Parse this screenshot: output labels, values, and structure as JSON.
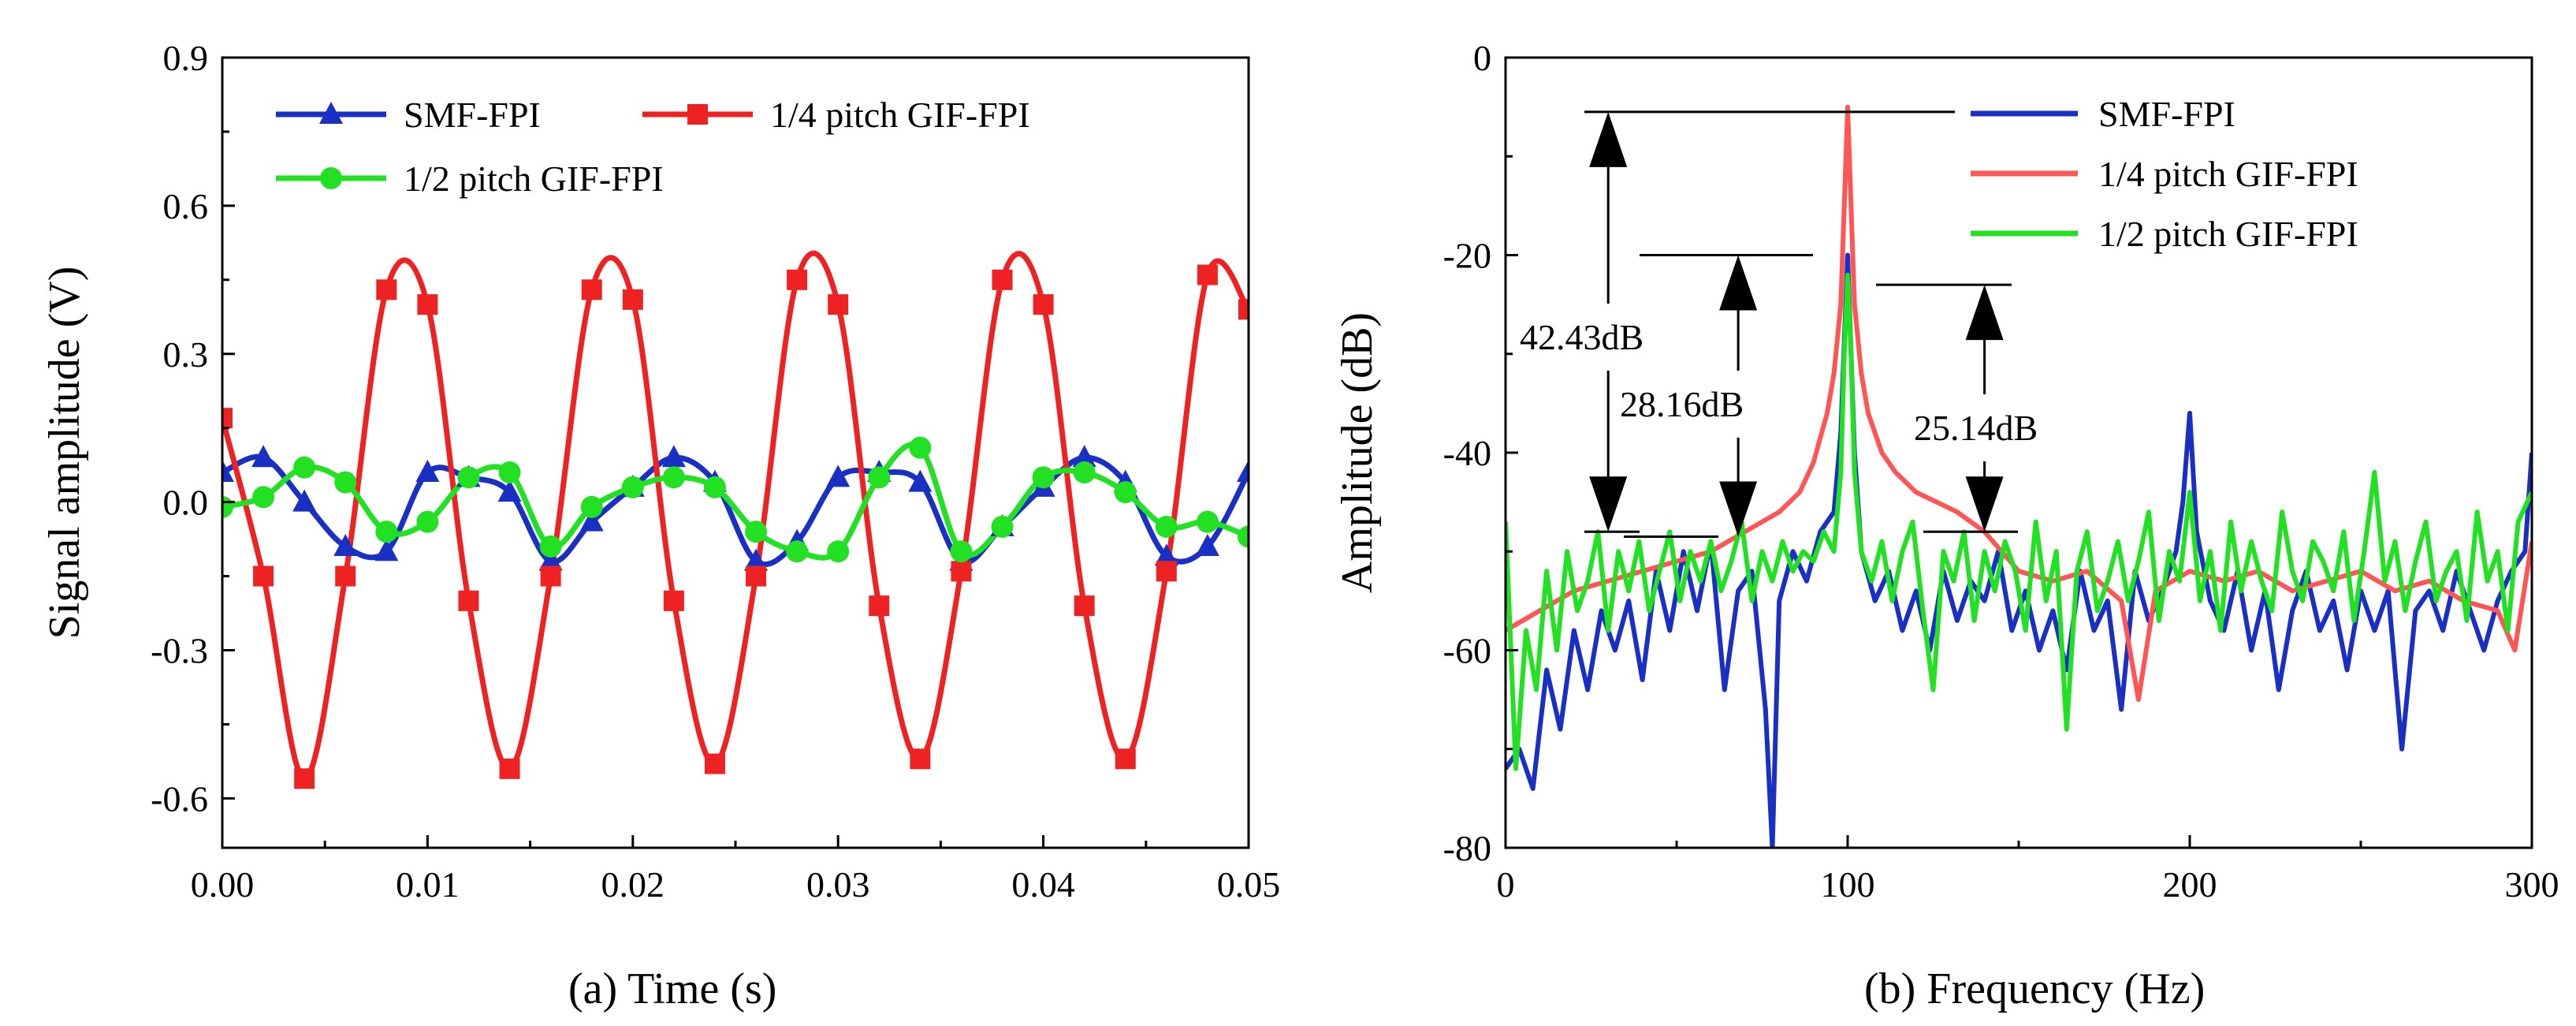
{
  "chart_data": [
    {
      "type": "line",
      "panel": "a",
      "xlabel": "(a)  Time (s)",
      "ylabel": "Signal amplitude (V)",
      "xlim": [
        0,
        0.05
      ],
      "ylim": [
        -0.7,
        0.9
      ],
      "xticks": [
        0.0,
        0.01,
        0.02,
        0.03,
        0.04,
        0.05
      ],
      "xtick_labels": [
        "0.00",
        "0.01",
        "0.02",
        "0.03",
        "0.04",
        "0.05"
      ],
      "yticks": [
        -0.6,
        -0.3,
        0.0,
        0.3,
        0.6,
        0.9
      ],
      "ytick_labels": [
        "-0.6",
        "-0.3",
        "0.0",
        "0.3",
        "0.6",
        "0.9"
      ],
      "legend_position": "top",
      "series": [
        {
          "name": "SMF-FPI",
          "color": "#1a2fc4",
          "marker": "triangle",
          "x": [
            0.0,
            0.002,
            0.004,
            0.006,
            0.008,
            0.01,
            0.012,
            0.014,
            0.016,
            0.018,
            0.02,
            0.022,
            0.024,
            0.026,
            0.028,
            0.03,
            0.032,
            0.034,
            0.036,
            0.038,
            0.04,
            0.042,
            0.044,
            0.046,
            0.048,
            0.05
          ],
          "values": [
            0.06,
            0.09,
            0.0,
            -0.09,
            -0.1,
            0.06,
            0.05,
            0.02,
            -0.12,
            -0.04,
            0.03,
            0.09,
            0.04,
            -0.12,
            -0.08,
            0.05,
            0.06,
            0.04,
            -0.12,
            -0.05,
            0.03,
            0.09,
            0.04,
            -0.11,
            -0.09,
            0.06
          ]
        },
        {
          "name": "1/4 pitch GIF-FPI",
          "color": "#ee2222",
          "marker": "square",
          "x": [
            0.0,
            0.002,
            0.004,
            0.006,
            0.008,
            0.01,
            0.012,
            0.014,
            0.016,
            0.018,
            0.02,
            0.022,
            0.024,
            0.026,
            0.028,
            0.03,
            0.032,
            0.034,
            0.036,
            0.038,
            0.04,
            0.042,
            0.044,
            0.046,
            0.048,
            0.05
          ],
          "values": [
            0.17,
            -0.15,
            -0.56,
            -0.15,
            0.43,
            0.4,
            -0.2,
            -0.54,
            -0.15,
            0.43,
            0.41,
            -0.2,
            -0.53,
            -0.15,
            0.45,
            0.4,
            -0.21,
            -0.52,
            -0.14,
            0.45,
            0.4,
            -0.21,
            -0.52,
            -0.14,
            0.46,
            0.39
          ]
        },
        {
          "name": "1/2 pitch GIF-FPI",
          "color": "#22e022",
          "marker": "circle",
          "x": [
            0.0,
            0.002,
            0.004,
            0.006,
            0.008,
            0.01,
            0.012,
            0.014,
            0.016,
            0.018,
            0.02,
            0.022,
            0.024,
            0.026,
            0.028,
            0.03,
            0.032,
            0.034,
            0.036,
            0.038,
            0.04,
            0.042,
            0.044,
            0.046,
            0.048,
            0.05
          ],
          "values": [
            -0.01,
            0.01,
            0.07,
            0.04,
            -0.06,
            -0.04,
            0.05,
            0.06,
            -0.09,
            -0.01,
            0.03,
            0.05,
            0.03,
            -0.06,
            -0.1,
            -0.1,
            0.05,
            0.11,
            -0.1,
            -0.05,
            0.05,
            0.06,
            0.02,
            -0.05,
            -0.04,
            -0.07
          ]
        }
      ]
    },
    {
      "type": "line",
      "panel": "b",
      "xlabel": "(b)  Frequency (Hz)",
      "ylabel": "Amplitude (dB)",
      "xlim": [
        0,
        300
      ],
      "ylim": [
        -80,
        0
      ],
      "xticks": [
        0,
        100,
        200,
        300
      ],
      "xtick_labels": [
        "0",
        "100",
        "200",
        "300"
      ],
      "yticks": [
        -80,
        -60,
        -40,
        -20,
        0
      ],
      "ytick_labels": [
        "-80",
        "-60",
        "-40",
        "-20",
        "0"
      ],
      "legend_position": "top-right",
      "series": [
        {
          "name": "SMF-FPI",
          "color": "#1a2fc4",
          "x": [
            0,
            4,
            8,
            12,
            16,
            20,
            24,
            28,
            32,
            36,
            40,
            44,
            48,
            52,
            56,
            60,
            64,
            68,
            72,
            76,
            78,
            80,
            84,
            88,
            92,
            96,
            98,
            100,
            102,
            104,
            108,
            112,
            116,
            120,
            124,
            128,
            132,
            136,
            140,
            144,
            148,
            152,
            156,
            160,
            164,
            168,
            172,
            176,
            180,
            184,
            188,
            192,
            196,
            198,
            200,
            202,
            206,
            210,
            214,
            218,
            222,
            226,
            230,
            234,
            238,
            242,
            246,
            250,
            254,
            258,
            262,
            266,
            270,
            274,
            278,
            282,
            286,
            290,
            294,
            298,
            300
          ],
          "values": [
            -72,
            -70,
            -74,
            -62,
            -68,
            -58,
            -64,
            -56,
            -60,
            -55,
            -63,
            -52,
            -58,
            -50,
            -56,
            -49,
            -64,
            -54,
            -52,
            -66,
            -80,
            -55,
            -50,
            -53,
            -48,
            -46,
            -38,
            -20,
            -40,
            -50,
            -55,
            -52,
            -58,
            -54,
            -60,
            -52,
            -57,
            -53,
            -55,
            -50,
            -58,
            -54,
            -60,
            -56,
            -62,
            -52,
            -58,
            -55,
            -66,
            -52,
            -57,
            -54,
            -50,
            -45,
            -36,
            -48,
            -55,
            -58,
            -52,
            -60,
            -54,
            -64,
            -56,
            -52,
            -58,
            -55,
            -62,
            -54,
            -58,
            -54,
            -70,
            -56,
            -54,
            -58,
            -52,
            -56,
            -60,
            -55,
            -52,
            -50,
            -40
          ]
        },
        {
          "name": "1/4 pitch GIF-FPI",
          "color": "#ff5555",
          "x": [
            0,
            10,
            20,
            30,
            40,
            50,
            60,
            70,
            80,
            86,
            90,
            94,
            96,
            98,
            99,
            100,
            101,
            102,
            104,
            106,
            110,
            114,
            120,
            126,
            132,
            136,
            140,
            150,
            160,
            170,
            180,
            185,
            190,
            200,
            210,
            220,
            230,
            240,
            250,
            260,
            270,
            280,
            290,
            295,
            300
          ],
          "values": [
            -58,
            -56,
            -54,
            -53,
            -52,
            -51,
            -50,
            -48,
            -46,
            -44,
            -41,
            -36,
            -32,
            -25,
            -15,
            -5,
            -15,
            -25,
            -32,
            -36,
            -40,
            -42,
            -44,
            -45,
            -46,
            -47,
            -48,
            -52,
            -53,
            -52,
            -55,
            -65,
            -54,
            -52,
            -53,
            -52,
            -54,
            -53,
            -52,
            -54,
            -53,
            -55,
            -56,
            -60,
            -49
          ]
        },
        {
          "name": "1/2 pitch GIF-FPI",
          "color": "#22e022",
          "x": [
            0,
            3,
            6,
            9,
            12,
            15,
            18,
            21,
            24,
            27,
            30,
            33,
            36,
            39,
            42,
            45,
            48,
            51,
            54,
            57,
            60,
            63,
            66,
            69,
            72,
            75,
            78,
            81,
            84,
            87,
            90,
            93,
            96,
            98,
            99,
            100,
            101,
            102,
            104,
            107,
            110,
            113,
            116,
            119,
            122,
            125,
            128,
            131,
            134,
            137,
            140,
            143,
            146,
            149,
            152,
            155,
            158,
            161,
            164,
            167,
            170,
            173,
            176,
            179,
            182,
            185,
            188,
            191,
            194,
            197,
            200,
            203,
            206,
            209,
            212,
            215,
            218,
            221,
            224,
            227,
            230,
            233,
            236,
            239,
            242,
            245,
            248,
            251,
            254,
            257,
            260,
            263,
            266,
            269,
            272,
            275,
            278,
            281,
            284,
            287,
            290,
            293,
            296,
            300
          ],
          "values": [
            -47,
            -72,
            -58,
            -64,
            -52,
            -60,
            -50,
            -56,
            -53,
            -48,
            -58,
            -50,
            -54,
            -49,
            -56,
            -52,
            -48,
            -55,
            -50,
            -53,
            -49,
            -54,
            -51,
            -47,
            -55,
            -50,
            -53,
            -49,
            -52,
            -50,
            -51,
            -48,
            -50,
            -42,
            -30,
            -22,
            -30,
            -42,
            -50,
            -53,
            -49,
            -55,
            -50,
            -47,
            -56,
            -64,
            -50,
            -53,
            -48,
            -57,
            -50,
            -54,
            -49,
            -52,
            -58,
            -47,
            -55,
            -50,
            -68,
            -52,
            -48,
            -56,
            -53,
            -49,
            -55,
            -51,
            -46,
            -57,
            -50,
            -53,
            -44,
            -55,
            -50,
            -58,
            -47,
            -54,
            -49,
            -53,
            -56,
            -46,
            -52,
            -55,
            -49,
            -51,
            -54,
            -48,
            -57,
            -50,
            -42,
            -53,
            -49,
            -56,
            -51,
            -47,
            -55,
            -52,
            -50,
            -57,
            -46,
            -53,
            -50,
            -58,
            -47,
            -44
          ]
        }
      ],
      "annotations": [
        {
          "label": "42.43dB",
          "x": 30,
          "y_top": -5.5,
          "y_bottom": -48
        },
        {
          "label": "28.16dB",
          "x": 68,
          "y_top": -20,
          "y_bottom": -48.5
        },
        {
          "label": "25.14dB",
          "x": 140,
          "y_top": -23,
          "y_bottom": -48
        }
      ]
    }
  ]
}
